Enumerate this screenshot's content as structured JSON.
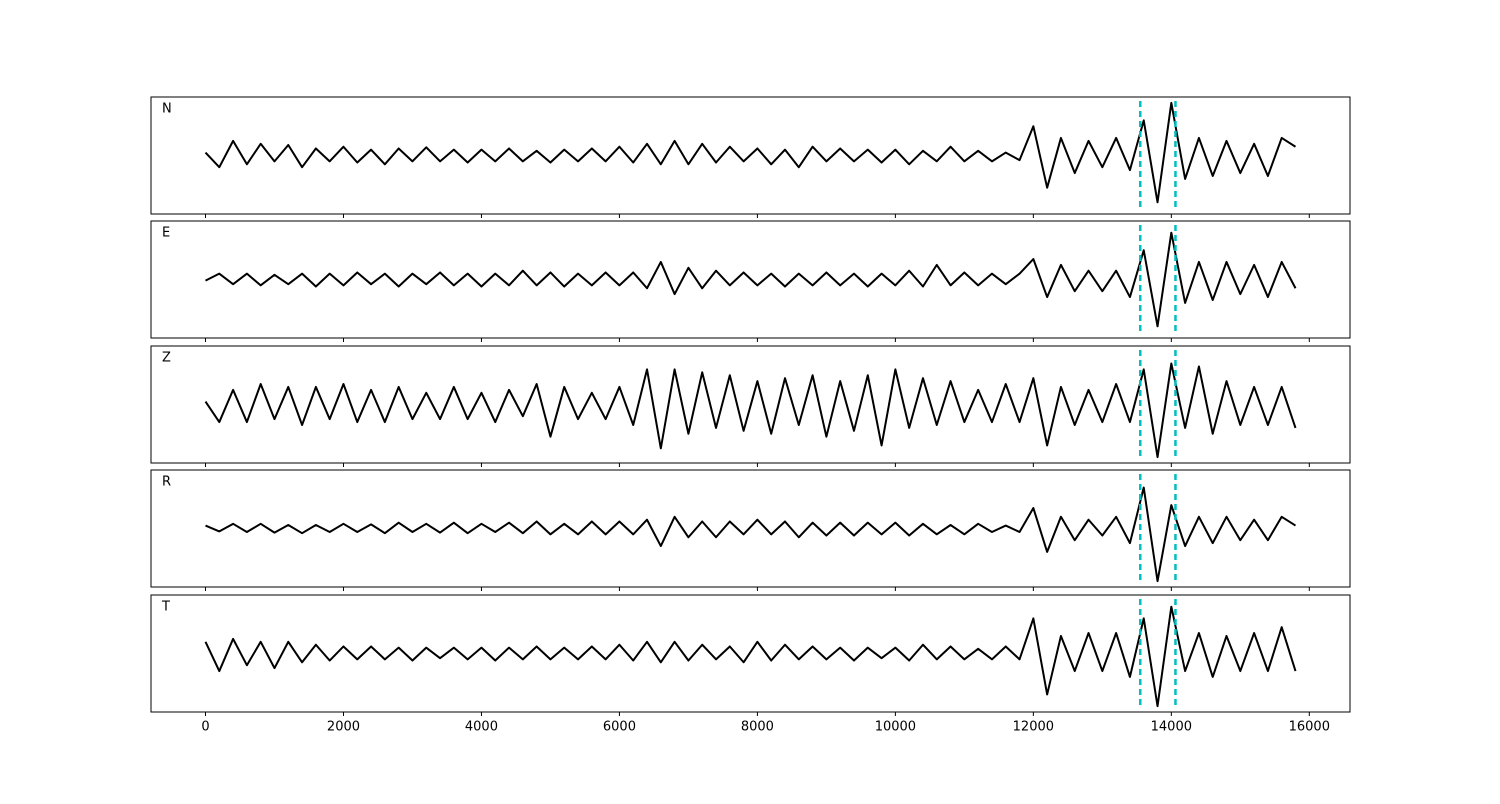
{
  "chart_data": {
    "type": "line",
    "stacked_panels": true,
    "x": [
      0,
      200,
      400,
      600,
      800,
      1000,
      1200,
      1400,
      1600,
      1800,
      2000,
      2200,
      2400,
      2600,
      2800,
      3000,
      3200,
      3400,
      3600,
      3800,
      4000,
      4200,
      4400,
      4600,
      4800,
      5000,
      5200,
      5400,
      5600,
      5800,
      6000,
      6200,
      6400,
      6600,
      6800,
      7000,
      7200,
      7400,
      7600,
      7800,
      8000,
      8200,
      8400,
      8600,
      8800,
      9000,
      9200,
      9400,
      9600,
      9800,
      10000,
      10200,
      10400,
      10600,
      10800,
      11000,
      11200,
      11400,
      11600,
      11800,
      12000,
      12200,
      12400,
      12600,
      12800,
      13000,
      13200,
      13400,
      13600,
      13800,
      14000,
      14200,
      14400,
      14600,
      14800,
      15000,
      15200,
      15400,
      15600,
      15800
    ],
    "series": [
      {
        "name": "N",
        "color": "#000000",
        "values": [
          0.05,
          -0.2,
          0.25,
          -0.15,
          0.2,
          -0.1,
          0.18,
          -0.2,
          0.12,
          -0.1,
          0.15,
          -0.12,
          0.1,
          -0.15,
          0.12,
          -0.1,
          0.14,
          -0.1,
          0.1,
          -0.12,
          0.1,
          -0.1,
          0.12,
          -0.1,
          0.08,
          -0.12,
          0.1,
          -0.1,
          0.12,
          -0.1,
          0.15,
          -0.12,
          0.2,
          -0.15,
          0.25,
          -0.15,
          0.2,
          -0.12,
          0.15,
          -0.1,
          0.12,
          -0.15,
          0.1,
          -0.2,
          0.15,
          -0.1,
          0.12,
          -0.1,
          0.1,
          -0.12,
          0.1,
          -0.15,
          0.08,
          -0.1,
          0.15,
          -0.1,
          0.08,
          -0.1,
          0.05,
          -0.08,
          0.5,
          -0.55,
          0.3,
          -0.3,
          0.25,
          -0.2,
          0.3,
          -0.25,
          0.6,
          -0.8,
          0.9,
          -0.4,
          0.3,
          -0.35,
          0.25,
          -0.3,
          0.2,
          -0.35,
          0.3,
          0.15
        ]
      },
      {
        "name": "E",
        "color": "#000000",
        "values": [
          -0.02,
          0.1,
          -0.08,
          0.1,
          -0.1,
          0.08,
          -0.08,
          0.1,
          -0.12,
          0.1,
          -0.1,
          0.12,
          -0.08,
          0.1,
          -0.12,
          0.1,
          -0.08,
          0.12,
          -0.1,
          0.1,
          -0.12,
          0.1,
          -0.1,
          0.15,
          -0.1,
          0.12,
          -0.12,
          0.1,
          -0.1,
          0.12,
          -0.1,
          0.12,
          -0.15,
          0.3,
          -0.25,
          0.2,
          -0.15,
          0.15,
          -0.1,
          0.12,
          -0.1,
          0.1,
          -0.12,
          0.1,
          -0.1,
          0.12,
          -0.1,
          0.1,
          -0.12,
          0.1,
          -0.1,
          0.15,
          -0.12,
          0.25,
          -0.1,
          0.12,
          -0.1,
          0.1,
          -0.08,
          0.1,
          0.35,
          -0.3,
          0.25,
          -0.2,
          0.15,
          -0.2,
          0.15,
          -0.3,
          0.5,
          -0.8,
          0.8,
          -0.4,
          0.3,
          -0.35,
          0.3,
          -0.25,
          0.25,
          -0.3,
          0.3,
          -0.15
        ]
      },
      {
        "name": "Z",
        "color": "#000000",
        "values": [
          0.05,
          -0.3,
          0.25,
          -0.3,
          0.35,
          -0.25,
          0.3,
          -0.35,
          0.3,
          -0.25,
          0.35,
          -0.3,
          0.25,
          -0.3,
          0.3,
          -0.25,
          0.2,
          -0.25,
          0.3,
          -0.25,
          0.2,
          -0.3,
          0.25,
          -0.2,
          0.35,
          -0.55,
          0.3,
          -0.25,
          0.2,
          -0.25,
          0.3,
          -0.35,
          0.6,
          -0.75,
          0.6,
          -0.5,
          0.55,
          -0.4,
          0.5,
          -0.45,
          0.4,
          -0.5,
          0.45,
          -0.35,
          0.5,
          -0.55,
          0.4,
          -0.45,
          0.5,
          -0.7,
          0.6,
          -0.4,
          0.45,
          -0.35,
          0.4,
          -0.3,
          0.25,
          -0.3,
          0.35,
          -0.3,
          0.45,
          -0.7,
          0.3,
          -0.35,
          0.25,
          -0.3,
          0.35,
          -0.3,
          0.6,
          -0.9,
          0.7,
          -0.4,
          0.65,
          -0.5,
          0.4,
          -0.35,
          0.3,
          -0.35,
          0.3,
          -0.4
        ]
      },
      {
        "name": "R",
        "color": "#000000",
        "values": [
          0.05,
          -0.05,
          0.08,
          -0.06,
          0.08,
          -0.07,
          0.06,
          -0.08,
          0.06,
          -0.06,
          0.08,
          -0.06,
          0.07,
          -0.08,
          0.1,
          -0.06,
          0.08,
          -0.07,
          0.1,
          -0.08,
          0.08,
          -0.06,
          0.1,
          -0.08,
          0.12,
          -0.1,
          0.08,
          -0.1,
          0.12,
          -0.1,
          0.12,
          -0.1,
          0.15,
          -0.3,
          0.2,
          -0.15,
          0.12,
          -0.15,
          0.12,
          -0.1,
          0.15,
          -0.1,
          0.12,
          -0.15,
          0.1,
          -0.12,
          0.1,
          -0.12,
          0.1,
          -0.1,
          0.1,
          -0.12,
          0.08,
          -0.1,
          0.06,
          -0.1,
          0.08,
          -0.06,
          0.05,
          -0.06,
          0.35,
          -0.4,
          0.2,
          -0.2,
          0.15,
          -0.12,
          0.2,
          -0.25,
          0.7,
          -0.9,
          0.4,
          -0.3,
          0.2,
          -0.25,
          0.2,
          -0.2,
          0.15,
          -0.2,
          0.2,
          0.05
        ]
      },
      {
        "name": "T",
        "color": "#000000",
        "values": [
          0.2,
          -0.3,
          0.25,
          -0.2,
          0.2,
          -0.25,
          0.2,
          -0.15,
          0.15,
          -0.12,
          0.12,
          -0.1,
          0.12,
          -0.1,
          0.1,
          -0.12,
          0.1,
          -0.08,
          0.1,
          -0.1,
          0.1,
          -0.12,
          0.1,
          -0.1,
          0.12,
          -0.1,
          0.1,
          -0.1,
          0.12,
          -0.1,
          0.15,
          -0.12,
          0.2,
          -0.15,
          0.2,
          -0.12,
          0.15,
          -0.1,
          0.12,
          -0.15,
          0.2,
          -0.12,
          0.15,
          -0.1,
          0.12,
          -0.1,
          0.1,
          -0.12,
          0.1,
          -0.08,
          0.1,
          -0.12,
          0.15,
          -0.1,
          0.12,
          -0.1,
          0.08,
          -0.1,
          0.12,
          -0.1,
          0.6,
          -0.7,
          0.3,
          -0.3,
          0.35,
          -0.3,
          0.35,
          -0.4,
          0.6,
          -0.9,
          0.8,
          -0.3,
          0.35,
          -0.4,
          0.3,
          -0.3,
          0.35,
          -0.3,
          0.45,
          -0.3
        ]
      }
    ],
    "xlim": [
      -790,
      16590
    ],
    "ylim": [
      -1,
      1
    ],
    "xticks": [
      0,
      2000,
      4000,
      6000,
      8000,
      10000,
      12000,
      14000,
      16000
    ],
    "markers": {
      "color": "#00bfbf",
      "x": [
        13550,
        14060
      ]
    }
  }
}
